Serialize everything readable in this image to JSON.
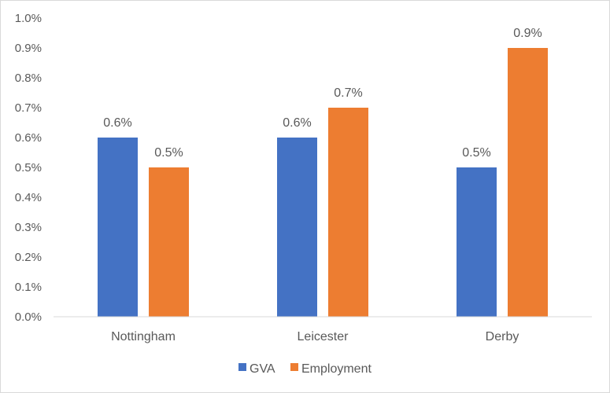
{
  "chart_data": {
    "type": "bar",
    "categories": [
      "Nottingham",
      "Leicester",
      "Derby"
    ],
    "series": [
      {
        "name": "GVA",
        "values": [
          0.6,
          0.6,
          0.5
        ],
        "labels": [
          "0.6%",
          "0.6%",
          "0.5%"
        ],
        "color": "#4472C4"
      },
      {
        "name": "Employment",
        "values": [
          0.5,
          0.7,
          0.9
        ],
        "labels": [
          "0.5%",
          "0.7%",
          "0.9%"
        ],
        "color": "#ED7D31"
      }
    ],
    "ylim": [
      0,
      1.0
    ],
    "yticks": [
      0.0,
      0.1,
      0.2,
      0.3,
      0.4,
      0.5,
      0.6,
      0.7,
      0.8,
      0.9,
      1.0
    ],
    "ytick_labels": [
      "0.0%",
      "0.1%",
      "0.2%",
      "0.3%",
      "0.4%",
      "0.5%",
      "0.6%",
      "0.7%",
      "0.8%",
      "0.9%",
      "1.0%"
    ],
    "title": "",
    "xlabel": "",
    "ylabel": "",
    "grid": false,
    "legend_position": "bottom",
    "axis_color": "#d9d9d9",
    "text_color": "#595959"
  }
}
